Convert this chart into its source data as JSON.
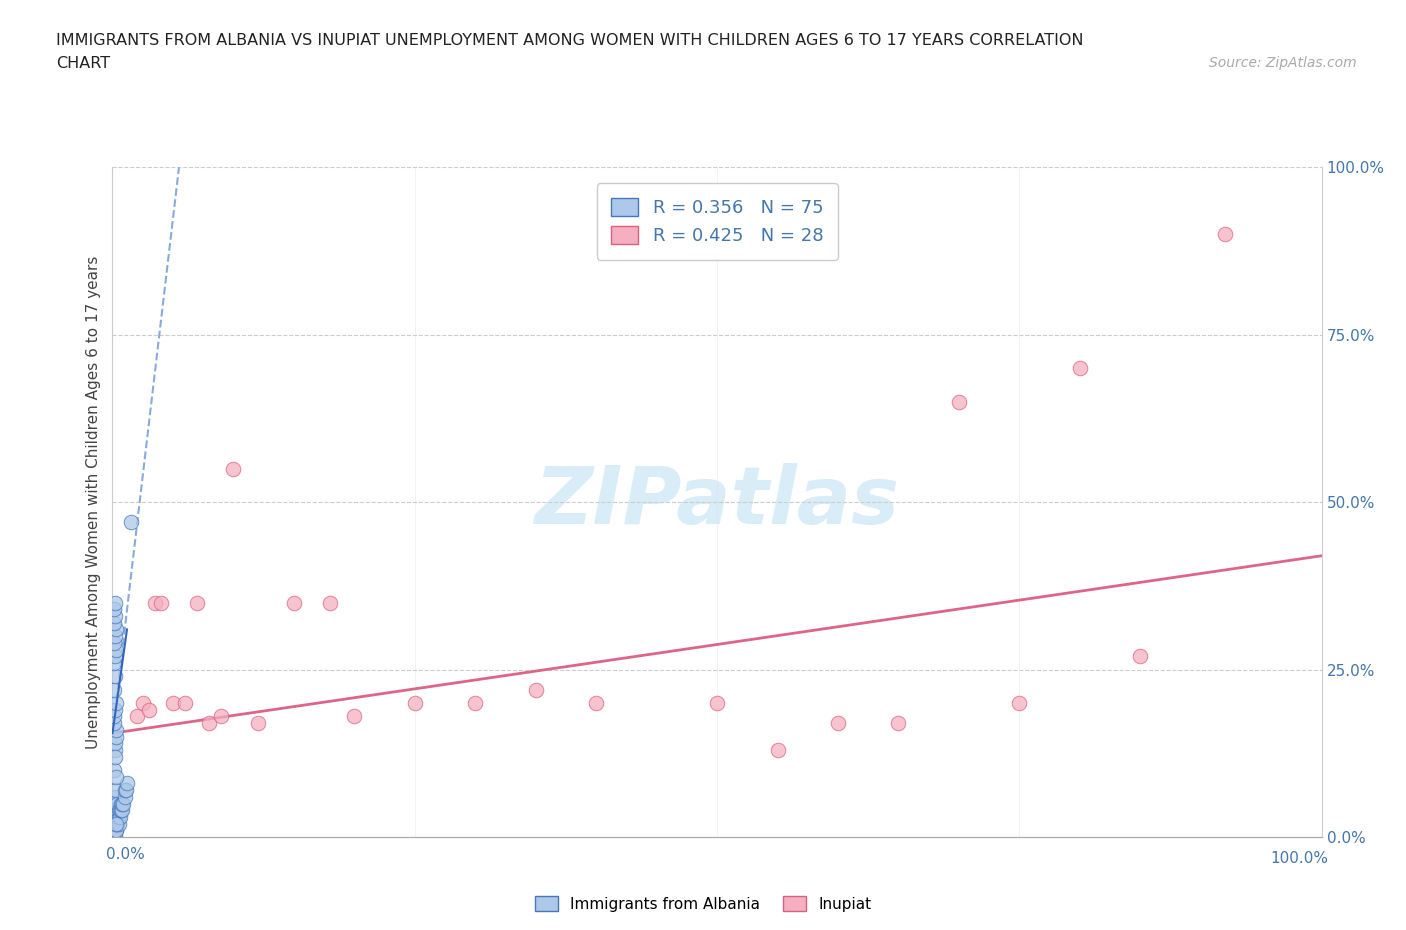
{
  "title_line1": "IMMIGRANTS FROM ALBANIA VS INUPIAT UNEMPLOYMENT AMONG WOMEN WITH CHILDREN AGES 6 TO 17 YEARS CORRELATION",
  "title_line2": "CHART",
  "source_text": "Source: ZipAtlas.com",
  "ylabel": "Unemployment Among Women with Children Ages 6 to 17 years",
  "xlim": [
    0.0,
    1.0
  ],
  "ylim": [
    0.0,
    1.0
  ],
  "yticks": [
    0.0,
    0.25,
    0.5,
    0.75,
    1.0
  ],
  "yticklabels": [
    "0.0%",
    "25.0%",
    "50.0%",
    "75.0%",
    "100.0%"
  ],
  "blue_R": 0.356,
  "blue_N": 75,
  "pink_R": 0.425,
  "pink_N": 28,
  "blue_color": "#adc8e8",
  "pink_color": "#f5afc0",
  "blue_edge_color": "#4477bb",
  "pink_edge_color": "#d96080",
  "blue_trend_color": "#88aadd",
  "pink_trend_color": "#dd6688",
  "tick_color": "#4477aa",
  "blue_scatter_x": [
    0.001,
    0.001,
    0.001,
    0.001,
    0.001,
    0.001,
    0.001,
    0.001,
    0.001,
    0.001,
    0.001,
    0.001,
    0.002,
    0.002,
    0.002,
    0.002,
    0.002,
    0.002,
    0.002,
    0.002,
    0.002,
    0.002,
    0.002,
    0.002,
    0.003,
    0.003,
    0.003,
    0.003,
    0.003,
    0.003,
    0.003,
    0.003,
    0.004,
    0.004,
    0.004,
    0.004,
    0.005,
    0.005,
    0.005,
    0.006,
    0.006,
    0.007,
    0.007,
    0.008,
    0.008,
    0.009,
    0.01,
    0.01,
    0.011,
    0.012,
    0.002,
    0.002,
    0.003,
    0.003,
    0.001,
    0.001,
    0.002,
    0.003,
    0.001,
    0.002,
    0.001,
    0.002,
    0.003,
    0.001,
    0.002,
    0.003,
    0.001,
    0.002,
    0.001,
    0.002,
    0.001,
    0.002,
    0.003,
    0.015,
    0.003
  ],
  "blue_scatter_y": [
    0.0,
    0.0,
    0.0,
    0.0,
    0.01,
    0.01,
    0.01,
    0.02,
    0.02,
    0.02,
    0.03,
    0.03,
    0.0,
    0.0,
    0.01,
    0.01,
    0.02,
    0.02,
    0.03,
    0.03,
    0.04,
    0.04,
    0.05,
    0.05,
    0.01,
    0.01,
    0.02,
    0.03,
    0.04,
    0.05,
    0.06,
    0.07,
    0.02,
    0.03,
    0.04,
    0.05,
    0.02,
    0.03,
    0.04,
    0.03,
    0.04,
    0.04,
    0.05,
    0.04,
    0.05,
    0.05,
    0.06,
    0.07,
    0.07,
    0.08,
    0.13,
    0.14,
    0.15,
    0.16,
    0.17,
    0.18,
    0.19,
    0.2,
    0.22,
    0.24,
    0.26,
    0.27,
    0.28,
    0.29,
    0.3,
    0.31,
    0.32,
    0.33,
    0.34,
    0.35,
    0.1,
    0.12,
    0.09,
    0.47,
    0.02
  ],
  "pink_scatter_x": [
    0.02,
    0.025,
    0.03,
    0.035,
    0.04,
    0.05,
    0.06,
    0.07,
    0.08,
    0.09,
    0.1,
    0.12,
    0.15,
    0.18,
    0.2,
    0.25,
    0.3,
    0.35,
    0.4,
    0.5,
    0.55,
    0.6,
    0.65,
    0.7,
    0.75,
    0.8,
    0.85,
    0.92
  ],
  "pink_scatter_y": [
    0.18,
    0.2,
    0.19,
    0.35,
    0.35,
    0.2,
    0.2,
    0.35,
    0.17,
    0.18,
    0.55,
    0.17,
    0.35,
    0.35,
    0.18,
    0.2,
    0.2,
    0.22,
    0.2,
    0.2,
    0.13,
    0.17,
    0.17,
    0.65,
    0.2,
    0.7,
    0.27,
    0.9
  ],
  "blue_trend_x": [
    0.0,
    0.055
  ],
  "blue_trend_y": [
    0.155,
    1.0
  ],
  "pink_trend_x": [
    0.0,
    1.0
  ],
  "pink_trend_y": [
    0.155,
    0.42
  ]
}
